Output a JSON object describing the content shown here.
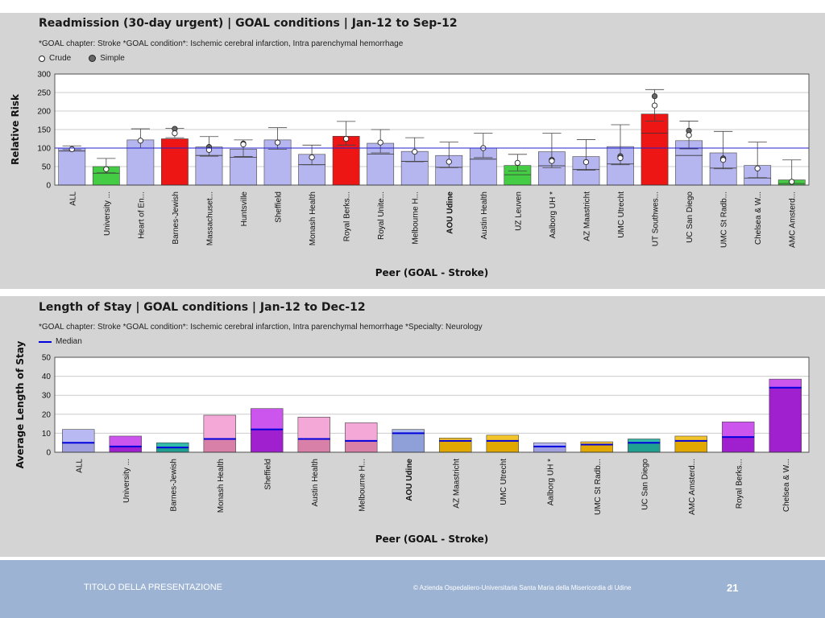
{
  "chart_data": [
    {
      "type": "bar",
      "title": "Readmission (30-day urgent) | GOAL conditions | Jan-12 to Sep-12",
      "subtitle": "*GOAL chapter: Stroke  *GOAL condition*: Ischemic cerebral infarction, Intra parenchymal hemorrhage",
      "xlabel": "Peer (GOAL - Stroke)",
      "ylabel": "Relative Risk",
      "ylim": [
        0,
        300
      ],
      "yticks": [
        "0",
        "50",
        "100",
        "150",
        "200",
        "250",
        "300"
      ],
      "grid": true,
      "reference_line": 100,
      "legend": [
        "Crude",
        "Simple"
      ],
      "categories": [
        "ALL",
        "University ...",
        "Heart of En...",
        "Barnes-Jewish",
        "Massachuset...",
        "Huntsville",
        "Sheffield",
        "Monash Health",
        "Royal Berks...",
        "Royal Unite...",
        "Melbourne H...",
        "AOU Udine",
        "Austin Health",
        "UZ Leuven",
        "Aalborg UH *",
        "AZ Maastricht",
        "UMC Utrecht",
        "UT Southwes...",
        "UC San Diego",
        "UMC St Radb...",
        "Chelsea & W...",
        "AMC Amsterd..."
      ],
      "highlight_category": "AOU Udine",
      "values": [
        100,
        50,
        122,
        125,
        103,
        97,
        122,
        83,
        132,
        113,
        91,
        80,
        100,
        53,
        90,
        77,
        104,
        192,
        120,
        87,
        53,
        14
      ],
      "inner_marks": [
        92,
        32,
        100,
        100,
        80,
        75,
        100,
        55,
        100,
        84,
        64,
        48,
        70,
        28,
        52,
        42,
        57,
        140,
        80,
        46,
        19,
        4
      ],
      "crude": [
        97,
        43,
        120,
        140,
        95,
        110,
        115,
        75,
        125,
        115,
        90,
        63,
        100,
        60,
        65,
        62,
        73,
        215,
        135,
        68,
        45,
        9
      ],
      "simple": [
        null,
        null,
        null,
        152,
        103,
        112,
        null,
        null,
        null,
        null,
        null,
        null,
        null,
        null,
        68,
        null,
        78,
        240,
        147,
        72,
        null,
        null
      ],
      "error_low": [
        96,
        33,
        100,
        128,
        78,
        77,
        97,
        55,
        108,
        87,
        63,
        47,
        74,
        38,
        47,
        40,
        55,
        173,
        98,
        44,
        20,
        4
      ],
      "error_high": [
        106,
        72,
        152,
        153,
        131,
        122,
        155,
        108,
        172,
        150,
        128,
        116,
        140,
        83,
        140,
        123,
        163,
        258,
        173,
        145,
        116,
        68
      ],
      "bar_colors": [
        "#b5b5ef",
        "#44cc44",
        "#b5b5ef",
        "#ee1515",
        "#b5b5ef",
        "#b5b5ef",
        "#b5b5ef",
        "#b5b5ef",
        "#ee1515",
        "#b5b5ef",
        "#b5b5ef",
        "#b5b5ef",
        "#b5b5ef",
        "#44cc44",
        "#b5b5ef",
        "#b5b5ef",
        "#b5b5ef",
        "#ee1515",
        "#b5b5ef",
        "#b5b5ef",
        "#b5b5ef",
        "#44cc44"
      ]
    },
    {
      "type": "bar",
      "title": "Length of Stay | GOAL conditions | Jan-12 to Dec-12",
      "subtitle": "*GOAL chapter: Stroke  *GOAL condition*: Ischemic cerebral infarction, Intra parenchymal hemorrhage  *Specialty: Neurology",
      "xlabel": "Peer (GOAL - Stroke)",
      "ylabel": "Average Length of Stay",
      "ylim": [
        0,
        50
      ],
      "yticks": [
        "0",
        "10",
        "20",
        "30",
        "40",
        "50"
      ],
      "grid": true,
      "legend": [
        "Median"
      ],
      "categories": [
        "ALL",
        "University ...",
        "Barnes-Jewish",
        "Monash Health",
        "Sheffield",
        "Austin Health",
        "Melbourne H...",
        "AOU Udine",
        "AZ Maastricht",
        "UMC Utrecht",
        "Aalborg UH *",
        "UMC St Radb...",
        "UC San Diego",
        "AMC Amsterd...",
        "Royal Berks...",
        "Chelsea & W..."
      ],
      "highlight_category": "AOU Udine",
      "values": [
        12,
        8.5,
        5,
        19.5,
        23,
        18.5,
        15.5,
        12,
        7.5,
        9,
        5,
        5.5,
        7,
        8.5,
        16,
        38.5
      ],
      "median": [
        5,
        3,
        2.5,
        7,
        12,
        7,
        6,
        10,
        6,
        6,
        3,
        4,
        5,
        6,
        8,
        34
      ],
      "bar_colors": [
        "#b8b8f2",
        "#cc55ee",
        "#33bbaa",
        "#f4a8d8",
        "#cc55ee",
        "#f4a8d8",
        "#f4a8d8",
        "#a8b8e8",
        "#f2c42a",
        "#f2c42a",
        "#b8b8f2",
        "#f2c42a",
        "#33bbaa",
        "#f2c42a",
        "#cc55ee",
        "#cc55ee"
      ],
      "lower_colors": [
        "#a0a0e0",
        "#a020d0",
        "#20a090",
        "#d880a8",
        "#a020d0",
        "#d880a8",
        "#d880a8",
        "#8fa0d8",
        "#e0a800",
        "#e0a800",
        "#a0a0e0",
        "#e0a800",
        "#20a090",
        "#e0a800",
        "#a020d0",
        "#a020d0"
      ]
    }
  ],
  "footer": {
    "left": "TITOLO DELLA PRESENTAZIONE",
    "center": "© Azienda Ospedaliero-Universitaria Santa Maria della Misericordia di Udine",
    "page": "21"
  },
  "colors": {
    "median": "#0000dd",
    "reference": "#2222cc",
    "axis": "#000000",
    "grid": "#cccccc"
  }
}
